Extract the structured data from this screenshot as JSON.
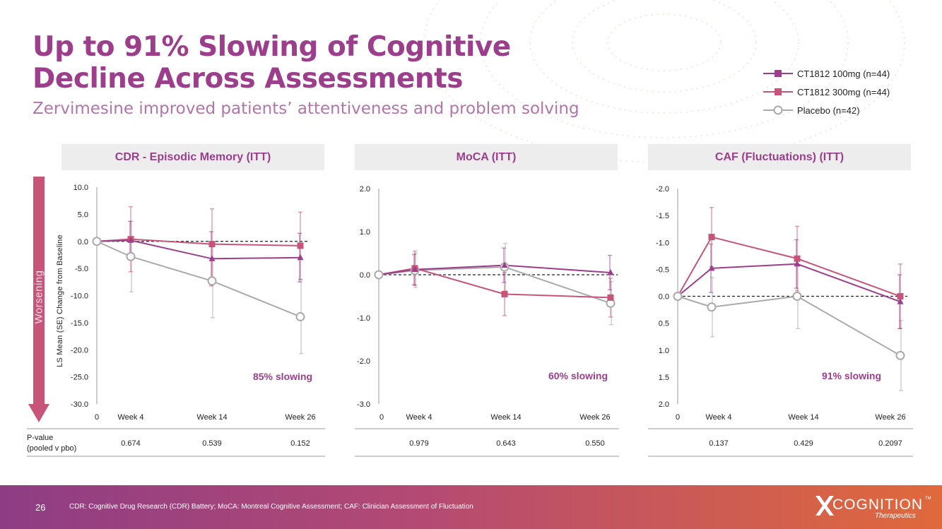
{
  "header": {
    "title_line1": "Up to 91% Slowing of Cognitive",
    "title_line2": "Decline Across Assessments",
    "subtitle": "Zervimesine improved patients’ attentiveness and problem solving"
  },
  "legend": [
    {
      "label": "CT1812 100mg (n=44)",
      "color": "#9c3e8b",
      "marker": "square"
    },
    {
      "label": "CT1812 300mg (n=44)",
      "color": "#c8547a",
      "marker": "square"
    },
    {
      "label": "Placebo (n=42)",
      "color": "#aaaaaa",
      "marker": "circle"
    }
  ],
  "side_label": "Worsening",
  "y_axis_label": "LS Mean (SE) Change from Baseline",
  "pvalue_label_line1": "P-value",
  "pvalue_label_line2": "(pooled v pbo)",
  "chart_data": [
    {
      "type": "line",
      "title": "CDR - Episodic Memory (ITT)",
      "x_tick_labels": [
        "0",
        "Week 4",
        "Week 14",
        "Week 26"
      ],
      "x": [
        0,
        4,
        14,
        26
      ],
      "ylim": [
        -30,
        10
      ],
      "inverted": false,
      "y_ticks": [
        10,
        5,
        0,
        -5,
        -10,
        -15,
        -20,
        -25,
        -30
      ],
      "y_tick_labels": [
        "10.0",
        "5.0",
        "0.0",
        "-5.0",
        "-10.0",
        "-15.0",
        "-20.0",
        "-25.0",
        "-30.0"
      ],
      "series": [
        {
          "name": "CT1812 100mg (n=44)",
          "values": [
            0,
            0.2,
            -3.2,
            -3.0
          ],
          "se": [
            0,
            3.5,
            5.0,
            4.5
          ]
        },
        {
          "name": "CT1812 300mg (n=44)",
          "values": [
            0,
            0.4,
            -0.5,
            -0.8
          ],
          "se": [
            0,
            6.0,
            6.5,
            6.2
          ]
        },
        {
          "name": "Placebo (n=42)",
          "values": [
            0,
            -2.8,
            -7.3,
            -13.9
          ],
          "se": [
            0,
            6.5,
            6.8,
            6.8
          ]
        }
      ],
      "annotation": "85% slowing",
      "pvalues": [
        "0.674",
        "0.539",
        "0.152"
      ]
    },
    {
      "type": "line",
      "title": "MoCA (ITT)",
      "x_tick_labels": [
        "0",
        "Week 4",
        "Week 14",
        "Week 26"
      ],
      "x": [
        0,
        4,
        14,
        26
      ],
      "ylim": [
        -3,
        2
      ],
      "inverted": false,
      "y_ticks": [
        2,
        1,
        0,
        -1,
        -2,
        -3
      ],
      "y_tick_labels": [
        "2.0",
        "1.0",
        "0.0",
        "-1.0",
        "-2.0",
        "-3.0"
      ],
      "series": [
        {
          "name": "CT1812 100mg (n=44)",
          "values": [
            0,
            0.12,
            0.22,
            0.05
          ],
          "se": [
            0,
            0.35,
            0.4,
            0.4
          ]
        },
        {
          "name": "CT1812 300mg (n=44)",
          "values": [
            0,
            0.15,
            -0.45,
            -0.53
          ],
          "se": [
            0,
            0.4,
            0.5,
            0.45
          ]
        },
        {
          "name": "Placebo (n=42)",
          "values": [
            0,
            0.1,
            0.18,
            -0.66
          ],
          "se": [
            0,
            0.4,
            0.55,
            0.5
          ]
        }
      ],
      "annotation": "60% slowing",
      "pvalues": [
        "0.979",
        "0.643",
        "0.550"
      ]
    },
    {
      "type": "line",
      "title": "CAF (Fluctuations) (ITT)",
      "x_tick_labels": [
        "0",
        "Week 4",
        "Week 14",
        "Week 26"
      ],
      "x": [
        0,
        4,
        14,
        26
      ],
      "ylim": [
        -2,
        2
      ],
      "inverted": true,
      "y_ticks": [
        -2,
        -1.5,
        -1,
        -0.5,
        0,
        0.5,
        1,
        1.5,
        2
      ],
      "y_tick_labels": [
        "-2.0",
        "-1.5",
        "-1.0",
        "-0.5",
        "0.0",
        "0.5",
        "1.0",
        "1.5",
        "2.0"
      ],
      "series": [
        {
          "name": "CT1812 100mg (n=44)",
          "values": [
            0,
            -0.52,
            -0.6,
            0.1
          ],
          "se": [
            0,
            0.45,
            0.45,
            0.5
          ]
        },
        {
          "name": "CT1812 300mg (n=44)",
          "values": [
            0,
            -1.1,
            -0.7,
            0.0
          ],
          "se": [
            0,
            0.55,
            0.6,
            0.6
          ]
        },
        {
          "name": "Placebo (n=42)",
          "values": [
            0,
            0.2,
            0.0,
            1.1
          ],
          "se": [
            0,
            0.55,
            0.6,
            0.65
          ]
        }
      ],
      "annotation": "91% slowing",
      "pvalues": [
        "0.137",
        "0.429",
        "0.2097"
      ]
    }
  ],
  "footer": {
    "page_number": "26",
    "footnote": "CDR: Cognitive Drug Research (CDR) Battery; MoCA: Montreal Cognitive Assessment; CAF: Clinician Assessment of Fluctuation",
    "logo_text": "COGNITION",
    "logo_tm": "TM",
    "logo_subtext": "Therapeutics"
  },
  "colors": {
    "accent": "#9c3e8b",
    "series_100mg": "#9c3e8b",
    "series_300mg": "#c8547a",
    "placebo": "#aaaaaa",
    "worsening_arrow": "#c8547a"
  }
}
